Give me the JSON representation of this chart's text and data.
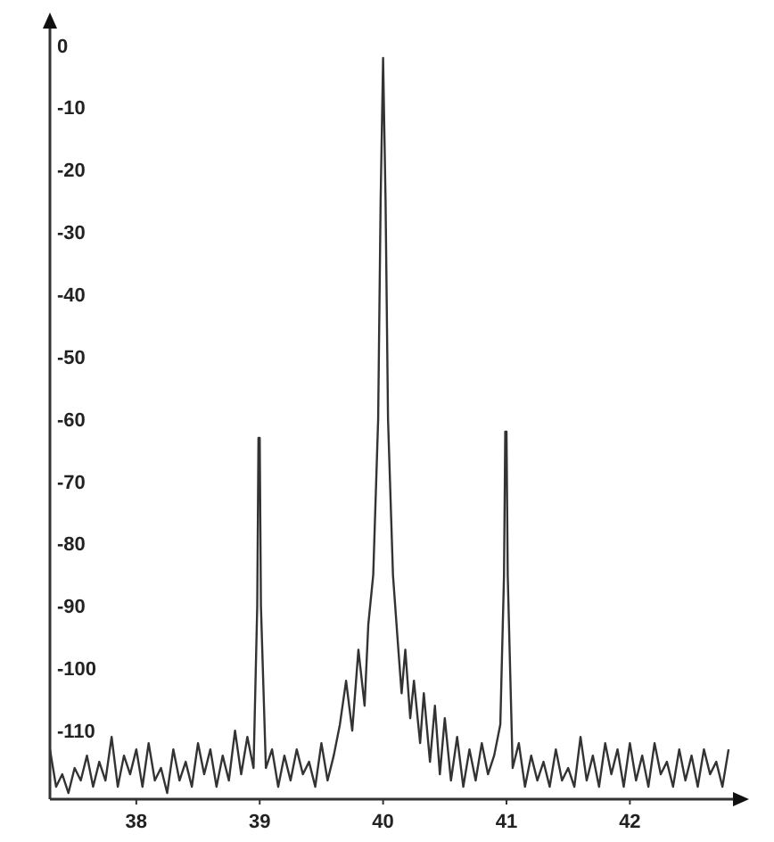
{
  "chart_data": {
    "type": "line",
    "xlim": [
      37.3,
      42.85
    ],
    "ylim": [
      -121,
      3
    ],
    "xticks": [
      38,
      39,
      40,
      41,
      42
    ],
    "yticks": [
      0,
      -10,
      -20,
      -30,
      -40,
      -50,
      -60,
      -70,
      -80,
      -90,
      -100,
      -110
    ],
    "grid": false,
    "marker": "none",
    "line_style": "solid",
    "series": [
      {
        "color": "#333333",
        "x": [
          37.3,
          37.35,
          37.4,
          37.45,
          37.5,
          37.55,
          37.6,
          37.65,
          37.7,
          37.75,
          37.8,
          37.85,
          37.9,
          37.95,
          38.0,
          38.05,
          38.1,
          38.15,
          38.2,
          38.25,
          38.3,
          38.35,
          38.4,
          38.45,
          38.5,
          38.55,
          38.6,
          38.65,
          38.7,
          38.75,
          38.8,
          38.85,
          38.9,
          38.95,
          38.98,
          38.99,
          39.0,
          39.01,
          39.05,
          39.1,
          39.15,
          39.2,
          39.25,
          39.3,
          39.35,
          39.4,
          39.45,
          39.5,
          39.55,
          39.6,
          39.65,
          39.7,
          39.75,
          39.8,
          39.85,
          39.88,
          39.92,
          39.96,
          39.98,
          40.0,
          40.02,
          40.04,
          40.08,
          40.12,
          40.15,
          40.18,
          40.22,
          40.25,
          40.3,
          40.33,
          40.38,
          40.42,
          40.46,
          40.5,
          40.55,
          40.6,
          40.65,
          40.7,
          40.75,
          40.8,
          40.85,
          40.9,
          40.95,
          40.98,
          40.99,
          41.0,
          41.01,
          41.05,
          41.1,
          41.15,
          41.2,
          41.25,
          41.3,
          41.35,
          41.4,
          41.45,
          41.5,
          41.55,
          41.6,
          41.65,
          41.7,
          41.75,
          41.8,
          41.85,
          41.9,
          41.95,
          42.0,
          42.05,
          42.1,
          42.15,
          42.2,
          42.25,
          42.3,
          42.35,
          42.4,
          42.45,
          42.5,
          42.55,
          42.6,
          42.65,
          42.7,
          42.75,
          42.8
        ],
        "values": [
          -113,
          -119,
          -117,
          -120,
          -116,
          -118,
          -114,
          -119,
          -115,
          -118,
          -111,
          -119,
          -114,
          -117,
          -113,
          -119,
          -112,
          -118,
          -116,
          -120,
          -113,
          -118,
          -115,
          -119,
          -112,
          -117,
          -113,
          -119,
          -114,
          -118,
          -110,
          -117,
          -111,
          -116,
          -90,
          -63,
          -63,
          -90,
          -116,
          -113,
          -119,
          -114,
          -118,
          -113,
          -117,
          -115,
          -119,
          -112,
          -118,
          -114,
          -109,
          -102,
          -110,
          -97,
          -106,
          -93,
          -85,
          -60,
          -25,
          -2,
          -25,
          -60,
          -85,
          -96,
          -104,
          -97,
          -108,
          -102,
          -112,
          -104,
          -115,
          -106,
          -117,
          -108,
          -118,
          -111,
          -119,
          -113,
          -118,
          -112,
          -117,
          -114,
          -109,
          -85,
          -62,
          -62,
          -85,
          -116,
          -112,
          -119,
          -114,
          -118,
          -115,
          -119,
          -113,
          -118,
          -116,
          -119,
          -111,
          -118,
          -114,
          -119,
          -112,
          -117,
          -113,
          -119,
          -112,
          -118,
          -114,
          -119,
          -112,
          -117,
          -115,
          -119,
          -113,
          -118,
          -114,
          -119,
          -113,
          -117,
          -115,
          -119,
          -113
        ]
      }
    ]
  }
}
